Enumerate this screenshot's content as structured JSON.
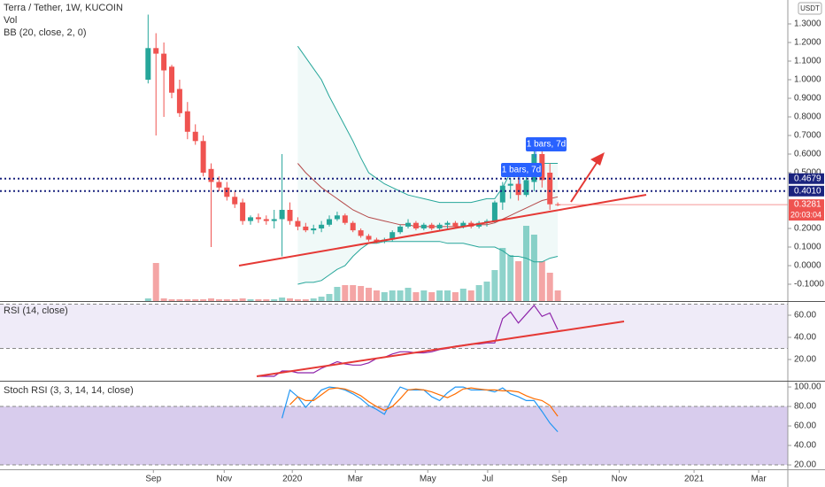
{
  "chart_data": [
    {
      "type": "candlestick",
      "title": "Terra / Tether, 1W, KUCOIN",
      "volume_label": "Vol",
      "bb_label": "BB (20, close, 2, 0)",
      "currency": "USDT",
      "up_color": "#26a69a",
      "down_color": "#ef5350",
      "xlim": [
        -18.8,
        81.2
      ],
      "xticks": [
        {
          "value": 0.67,
          "label": "Sep"
        },
        {
          "value": 9.66,
          "label": "Nov"
        },
        {
          "value": 18.3,
          "label": "2020"
        },
        {
          "value": 26.3,
          "label": "Mar"
        },
        {
          "value": 35.5,
          "label": "May"
        },
        {
          "value": 43.1,
          "label": "Jul"
        },
        {
          "value": 52.2,
          "label": "Sep"
        },
        {
          "value": 59.8,
          "label": "Nov"
        },
        {
          "value": 69.3,
          "label": "2021"
        },
        {
          "value": 77.5,
          "label": "Mar"
        }
      ],
      "ylim": [
        -0.1905,
        1.4286
      ],
      "yticks": [
        {
          "value": -0.1,
          "label": "-0.1000"
        },
        {
          "value": 0,
          "label": "0.0000"
        },
        {
          "value": 0.1,
          "label": "0.1000"
        },
        {
          "value": 0.2,
          "label": "0.2000"
        },
        {
          "value": 0.5,
          "label": "0.5000"
        },
        {
          "value": 0.6,
          "label": "0.6000"
        },
        {
          "value": 0.7,
          "label": "0.7000"
        },
        {
          "value": 0.8,
          "label": "0.8000"
        },
        {
          "value": 0.9,
          "label": "0.9000"
        },
        {
          "value": 1,
          "label": "1.0000"
        },
        {
          "value": 1.1,
          "label": "1.1000"
        },
        {
          "value": 1.2,
          "label": "1.2000"
        },
        {
          "value": 1.3,
          "label": "1.3000"
        }
      ],
      "open": [
        1.0,
        1.17,
        1.14,
        1.07,
        0.95,
        0.83,
        0.72,
        0.67,
        0.52,
        0.45,
        0.42,
        0.37,
        0.34,
        0.24,
        0.26,
        0.25,
        0.24,
        0.25,
        0.3,
        0.24,
        0.21,
        0.19,
        0.2,
        0.22,
        0.25,
        0.27,
        0.23,
        0.19,
        0.16,
        0.14,
        0.13,
        0.14,
        0.18,
        0.21,
        0.23,
        0.2,
        0.22,
        0.2,
        0.22,
        0.23,
        0.21,
        0.23,
        0.21,
        0.23,
        0.24,
        0.34,
        0.43,
        0.44,
        0.38,
        0.45,
        0.6,
        0.5,
        0.33
      ],
      "high": [
        1.35,
        1.25,
        1.2,
        1.08,
        1.0,
        0.88,
        0.76,
        0.7,
        0.55,
        0.48,
        0.45,
        0.4,
        0.36,
        0.27,
        0.28,
        0.27,
        0.3,
        0.6,
        0.34,
        0.26,
        0.23,
        0.22,
        0.24,
        0.27,
        0.29,
        0.28,
        0.24,
        0.2,
        0.17,
        0.15,
        0.15,
        0.19,
        0.22,
        0.25,
        0.24,
        0.23,
        0.23,
        0.23,
        0.24,
        0.24,
        0.24,
        0.24,
        0.24,
        0.25,
        0.35,
        0.45,
        0.47,
        0.48,
        0.48,
        0.62,
        0.62,
        0.55,
        0.34
      ],
      "low": [
        0.98,
        0.7,
        0.8,
        0.9,
        0.8,
        0.68,
        0.65,
        0.48,
        0.1,
        0.4,
        0.35,
        0.31,
        0.22,
        0.22,
        0.23,
        0.22,
        0.2,
        0.05,
        0.22,
        0.19,
        0.18,
        0.17,
        0.18,
        0.21,
        0.24,
        0.22,
        0.18,
        0.15,
        0.13,
        0.12,
        0.12,
        0.13,
        0.17,
        0.2,
        0.19,
        0.19,
        0.19,
        0.19,
        0.2,
        0.2,
        0.2,
        0.2,
        0.2,
        0.21,
        0.23,
        0.3,
        0.36,
        0.35,
        0.37,
        0.4,
        0.42,
        0.3,
        0.32
      ],
      "close": [
        1.17,
        1.14,
        1.05,
        0.93,
        0.82,
        0.72,
        0.67,
        0.5,
        0.45,
        0.42,
        0.37,
        0.33,
        0.24,
        0.26,
        0.25,
        0.24,
        0.25,
        0.3,
        0.24,
        0.21,
        0.19,
        0.2,
        0.22,
        0.25,
        0.27,
        0.23,
        0.19,
        0.16,
        0.14,
        0.13,
        0.14,
        0.18,
        0.21,
        0.23,
        0.2,
        0.22,
        0.2,
        0.22,
        0.23,
        0.21,
        0.23,
        0.21,
        0.23,
        0.24,
        0.34,
        0.43,
        0.44,
        0.38,
        0.46,
        0.6,
        0.46,
        0.33,
        0.3281
      ],
      "volume": {
        "ylim": [
          0,
          340
        ],
        "up_color": "#8fd3cb",
        "down_color": "#f4a5a5",
        "values": [
          3,
          43,
          3,
          2,
          2,
          2,
          2,
          2,
          3,
          2,
          2,
          2,
          3,
          2,
          2,
          2,
          2,
          4,
          3,
          2,
          2,
          3,
          5,
          8,
          16,
          18,
          18,
          17,
          15,
          12,
          10,
          12,
          12,
          15,
          10,
          12,
          10,
          12,
          12,
          10,
          14,
          12,
          18,
          22,
          35,
          60,
          52,
          45,
          85,
          75,
          45,
          32,
          12
        ]
      },
      "bb": {
        "band_color": "#26a69a",
        "basis_color": "#b54a4a",
        "upper": [
          null,
          null,
          null,
          null,
          null,
          null,
          null,
          null,
          null,
          null,
          null,
          null,
          null,
          null,
          null,
          null,
          null,
          null,
          null,
          1.18,
          1.12,
          1.06,
          1.0,
          0.91,
          0.83,
          0.75,
          0.67,
          0.58,
          0.5,
          0.47,
          0.44,
          0.42,
          0.4,
          0.38,
          0.37,
          0.36,
          0.35,
          0.34,
          0.34,
          0.34,
          0.34,
          0.34,
          0.35,
          0.36,
          0.36,
          0.42,
          0.5,
          0.5,
          0.52,
          0.55,
          0.55,
          0.55,
          0.55
        ],
        "basis": [
          null,
          null,
          null,
          null,
          null,
          null,
          null,
          null,
          null,
          null,
          null,
          null,
          null,
          null,
          null,
          null,
          null,
          null,
          null,
          0.55,
          0.5,
          0.46,
          0.42,
          0.39,
          0.36,
          0.33,
          0.3,
          0.28,
          0.26,
          0.25,
          0.24,
          0.23,
          0.22,
          0.22,
          0.21,
          0.21,
          0.21,
          0.21,
          0.21,
          0.21,
          0.21,
          0.22,
          0.22,
          0.22,
          0.23,
          0.25,
          0.27,
          0.29,
          0.31,
          0.33,
          0.35,
          0.36,
          0.37
        ],
        "lower": [
          null,
          null,
          null,
          null,
          null,
          null,
          null,
          null,
          null,
          null,
          null,
          null,
          null,
          null,
          null,
          null,
          null,
          null,
          null,
          -0.1,
          -0.09,
          -0.09,
          -0.08,
          -0.05,
          -0.02,
          0.0,
          0.05,
          0.09,
          0.12,
          0.12,
          0.13,
          0.13,
          0.13,
          0.13,
          0.13,
          0.13,
          0.13,
          0.13,
          0.12,
          0.12,
          0.12,
          0.11,
          0.1,
          0.1,
          0.1,
          0.08,
          0.05,
          0.05,
          0.04,
          0.02,
          0.02,
          0.04,
          0.05
        ]
      },
      "price_lines": [
        {
          "value": 0.4679,
          "label": "0.4679",
          "color": "#1a237e"
        },
        {
          "value": 0.401,
          "label": "0.4010",
          "color": "#1a237e"
        }
      ],
      "last_price": 0.3281,
      "countdown": "20:03:04",
      "annotations": [
        "1 bars, 7d",
        "1 bars, 7d"
      ]
    },
    {
      "type": "line",
      "title": "RSI (14, close)",
      "ylim": [
        0.8,
        72
      ],
      "yticks": [
        {
          "value": 20,
          "label": "20.00"
        },
        {
          "value": 40,
          "label": "40.00"
        },
        {
          "value": 60,
          "label": "60.00"
        }
      ],
      "band": [
        30,
        70
      ],
      "lines": [
        {
          "color": "#8e24aa",
          "values": [
            null,
            null,
            null,
            null,
            null,
            null,
            null,
            null,
            null,
            null,
            null,
            null,
            null,
            null,
            4.8,
            4.8,
            4.8,
            9.6,
            9.6,
            8,
            8,
            8,
            12,
            15,
            18,
            16,
            15,
            15,
            17,
            21,
            22,
            25,
            27,
            27,
            26,
            26,
            27,
            29,
            30,
            32,
            33,
            34,
            34,
            35,
            35,
            57,
            63,
            53,
            61,
            69,
            59,
            62,
            47
          ]
        }
      ]
    },
    {
      "type": "line",
      "title": "Stoch RSI (3, 3, 14, 14, close)",
      "ylim": [
        15.5,
        105.5
      ],
      "yticks": [
        {
          "value": 20,
          "label": "20.00"
        },
        {
          "value": 40,
          "label": "40.00"
        },
        {
          "value": 60,
          "label": "60.00"
        },
        {
          "value": 80,
          "label": "80.00"
        },
        {
          "value": 100,
          "label": "100.00"
        }
      ],
      "band": [
        20,
        80
      ],
      "lines": [
        {
          "color": "#2196f3",
          "values": [
            null,
            null,
            null,
            null,
            null,
            null,
            null,
            null,
            null,
            null,
            null,
            null,
            null,
            null,
            null,
            null,
            null,
            68,
            97,
            90,
            79,
            88,
            97,
            100,
            99,
            97,
            93,
            88,
            81,
            77,
            72,
            88,
            100,
            97,
            97,
            97,
            90,
            86,
            94,
            100,
            100,
            97,
            97,
            97,
            95,
            99,
            93,
            90,
            86,
            86,
            75,
            63,
            54
          ]
        },
        {
          "color": "#ff6d00",
          "values": [
            null,
            null,
            null,
            null,
            null,
            null,
            null,
            null,
            null,
            null,
            null,
            null,
            null,
            null,
            null,
            null,
            null,
            null,
            82,
            90,
            86,
            86,
            92,
            98,
            99,
            98,
            95,
            91,
            85,
            80,
            76,
            80,
            88,
            97,
            98,
            97,
            95,
            92,
            89,
            93,
            98,
            99,
            98,
            97,
            97,
            96,
            96,
            95,
            91,
            88,
            86,
            81,
            70
          ]
        }
      ]
    }
  ]
}
